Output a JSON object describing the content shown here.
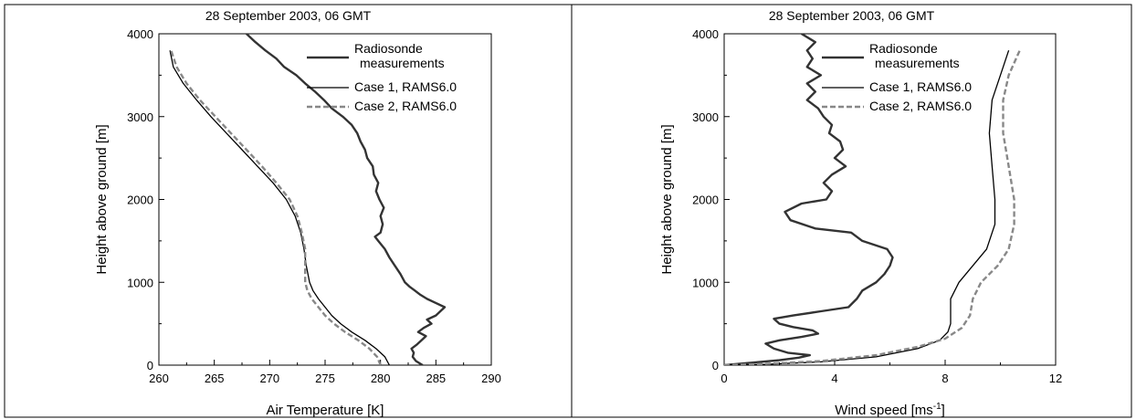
{
  "chart_data": [
    {
      "type": "line",
      "title": "28 September 2003, 06 GMT",
      "xlabel": "Air Temperature [K]",
      "ylabel": "Height above ground [m]",
      "xlim": [
        260,
        290
      ],
      "ylim": [
        0,
        4000
      ],
      "x_ticks": [
        "260",
        "265",
        "270",
        "275",
        "280",
        "285",
        "290"
      ],
      "y_ticks": [
        "0",
        "1000",
        "2000",
        "3000",
        "4000"
      ],
      "legend_position": "top-right",
      "grid": false,
      "series": [
        {
          "name": "Radiosonde measurements",
          "legend_lines": [
            "Radiosonde",
            "measurements"
          ],
          "color": "#333333",
          "style": "solid-thick",
          "points": [
            [
              283.8,
              0
            ],
            [
              283.2,
              50
            ],
            [
              282.9,
              100
            ],
            [
              283.0,
              150
            ],
            [
              282.8,
              200
            ],
            [
              283.3,
              250
            ],
            [
              283.7,
              300
            ],
            [
              284.1,
              350
            ],
            [
              283.4,
              400
            ],
            [
              283.9,
              450
            ],
            [
              284.6,
              500
            ],
            [
              284.2,
              550
            ],
            [
              285.0,
              600
            ],
            [
              285.4,
              650
            ],
            [
              285.8,
              700
            ],
            [
              285.0,
              750
            ],
            [
              284.2,
              800
            ],
            [
              283.6,
              850
            ],
            [
              283.1,
              900
            ],
            [
              282.6,
              950
            ],
            [
              282.2,
              1000
            ],
            [
              281.8,
              1100
            ],
            [
              281.3,
              1200
            ],
            [
              280.8,
              1300
            ],
            [
              280.4,
              1400
            ],
            [
              279.8,
              1500
            ],
            [
              279.5,
              1550
            ],
            [
              280.0,
              1600
            ],
            [
              280.2,
              1700
            ],
            [
              280.0,
              1800
            ],
            [
              280.3,
              1900
            ],
            [
              279.9,
              2000
            ],
            [
              279.6,
              2100
            ],
            [
              279.8,
              2200
            ],
            [
              279.4,
              2300
            ],
            [
              279.3,
              2400
            ],
            [
              278.8,
              2500
            ],
            [
              278.6,
              2600
            ],
            [
              278.2,
              2700
            ],
            [
              277.9,
              2800
            ],
            [
              277.4,
              2900
            ],
            [
              276.6,
              3000
            ],
            [
              275.6,
              3100
            ],
            [
              274.9,
              3200
            ],
            [
              274.1,
              3300
            ],
            [
              273.2,
              3400
            ],
            [
              272.4,
              3500
            ],
            [
              271.3,
              3600
            ],
            [
              270.6,
              3700
            ],
            [
              269.6,
              3800
            ],
            [
              268.7,
              3900
            ],
            [
              267.9,
              4000
            ]
          ]
        },
        {
          "name": "Case 1, RAMS6.0",
          "color": "#000000",
          "style": "solid-thin",
          "points": [
            [
              280.8,
              0
            ],
            [
              280.4,
              100
            ],
            [
              279.6,
              200
            ],
            [
              278.6,
              300
            ],
            [
              277.4,
              400
            ],
            [
              276.4,
              500
            ],
            [
              275.6,
              600
            ],
            [
              275.0,
              700
            ],
            [
              274.4,
              800
            ],
            [
              273.9,
              900
            ],
            [
              273.6,
              1000
            ],
            [
              273.3,
              1200
            ],
            [
              273.1,
              1400
            ],
            [
              272.8,
              1600
            ],
            [
              272.3,
              1800
            ],
            [
              271.5,
              2000
            ],
            [
              270.3,
              2200
            ],
            [
              268.9,
              2400
            ],
            [
              267.5,
              2600
            ],
            [
              266.1,
              2800
            ],
            [
              264.7,
              3000
            ],
            [
              263.4,
              3200
            ],
            [
              262.2,
              3400
            ],
            [
              261.3,
              3600
            ],
            [
              261.0,
              3800
            ]
          ]
        },
        {
          "name": "Case 2, RAMS6.0",
          "color": "#888888",
          "style": "dashed",
          "points": [
            [
              280.0,
              0
            ],
            [
              279.7,
              100
            ],
            [
              279.0,
              200
            ],
            [
              278.0,
              300
            ],
            [
              276.8,
              400
            ],
            [
              275.8,
              500
            ],
            [
              275.0,
              600
            ],
            [
              274.4,
              700
            ],
            [
              273.8,
              800
            ],
            [
              273.4,
              900
            ],
            [
              273.2,
              1000
            ],
            [
              273.2,
              1200
            ],
            [
              273.2,
              1400
            ],
            [
              272.9,
              1600
            ],
            [
              272.5,
              1800
            ],
            [
              271.8,
              2000
            ],
            [
              270.6,
              2200
            ],
            [
              269.3,
              2400
            ],
            [
              267.9,
              2600
            ],
            [
              266.5,
              2800
            ],
            [
              265.1,
              3000
            ],
            [
              263.7,
              3200
            ],
            [
              262.5,
              3400
            ],
            [
              261.6,
              3600
            ],
            [
              261.1,
              3800
            ]
          ]
        }
      ]
    },
    {
      "type": "line",
      "title": "28 September 2003, 06 GMT",
      "xlabel": "Wind speed [ms",
      "xlabel_sup": "-1",
      "xlabel_end": "]",
      "ylabel": "Height above ground [m]",
      "xlim": [
        0,
        12
      ],
      "ylim": [
        0,
        4000
      ],
      "x_ticks": [
        "0",
        "4",
        "8",
        "12"
      ],
      "y_ticks": [
        "0",
        "1000",
        "2000",
        "3000",
        "4000"
      ],
      "legend_position": "top-right",
      "grid": false,
      "series": [
        {
          "name": "Radiosonde measurements",
          "legend_lines": [
            "Radiosonde",
            "measurements"
          ],
          "color": "#333333",
          "style": "solid-thick",
          "points": [
            [
              0,
              0
            ],
            [
              1.0,
              30
            ],
            [
              2.0,
              60
            ],
            [
              2.7,
              90
            ],
            [
              3.1,
              120
            ],
            [
              2.3,
              150
            ],
            [
              1.8,
              200
            ],
            [
              1.5,
              260
            ],
            [
              2.0,
              300
            ],
            [
              2.8,
              340
            ],
            [
              3.4,
              380
            ],
            [
              3.2,
              420
            ],
            [
              2.5,
              460
            ],
            [
              2.0,
              500
            ],
            [
              1.8,
              560
            ],
            [
              2.5,
              600
            ],
            [
              3.5,
              650
            ],
            [
              4.5,
              700
            ],
            [
              4.8,
              800
            ],
            [
              5.0,
              900
            ],
            [
              5.5,
              1000
            ],
            [
              5.8,
              1100
            ],
            [
              6.0,
              1200
            ],
            [
              6.1,
              1300
            ],
            [
              5.9,
              1400
            ],
            [
              5.0,
              1500
            ],
            [
              4.6,
              1600
            ],
            [
              3.3,
              1650
            ],
            [
              2.4,
              1750
            ],
            [
              2.2,
              1850
            ],
            [
              2.8,
              1950
            ],
            [
              3.7,
              2000
            ],
            [
              3.9,
              2100
            ],
            [
              3.6,
              2200
            ],
            [
              3.9,
              2300
            ],
            [
              4.4,
              2400
            ],
            [
              4.0,
              2500
            ],
            [
              4.3,
              2600
            ],
            [
              4.2,
              2700
            ],
            [
              3.8,
              2800
            ],
            [
              3.9,
              2900
            ],
            [
              3.6,
              3000
            ],
            [
              3.4,
              3100
            ],
            [
              3.0,
              3200
            ],
            [
              3.3,
              3300
            ],
            [
              3.0,
              3400
            ],
            [
              3.5,
              3500
            ],
            [
              3.0,
              3600
            ],
            [
              3.2,
              3700
            ],
            [
              3.0,
              3800
            ],
            [
              3.3,
              3900
            ],
            [
              2.8,
              4000
            ]
          ]
        },
        {
          "name": "Case 1, RAMS6.0",
          "color": "#000000",
          "style": "solid-thin",
          "points": [
            [
              0,
              0
            ],
            [
              1.5,
              10
            ],
            [
              3.5,
              40
            ],
            [
              5.5,
              100
            ],
            [
              7.0,
              200
            ],
            [
              7.8,
              300
            ],
            [
              8.1,
              400
            ],
            [
              8.2,
              500
            ],
            [
              8.2,
              700
            ],
            [
              8.2,
              800
            ],
            [
              8.5,
              1000
            ],
            [
              9.0,
              1200
            ],
            [
              9.5,
              1400
            ],
            [
              9.8,
              1700
            ],
            [
              9.8,
              2000
            ],
            [
              9.7,
              2400
            ],
            [
              9.6,
              2800
            ],
            [
              9.7,
              3200
            ],
            [
              10.0,
              3500
            ],
            [
              10.3,
              3800
            ]
          ]
        },
        {
          "name": "Case 2, RAMS6.0",
          "color": "#888888",
          "style": "dashed",
          "points": [
            [
              0,
              0
            ],
            [
              1.5,
              15
            ],
            [
              3.5,
              50
            ],
            [
              5.5,
              120
            ],
            [
              7.0,
              220
            ],
            [
              8.0,
              320
            ],
            [
              8.6,
              450
            ],
            [
              8.9,
              600
            ],
            [
              9.0,
              800
            ],
            [
              9.3,
              1000
            ],
            [
              9.9,
              1200
            ],
            [
              10.3,
              1400
            ],
            [
              10.5,
              1700
            ],
            [
              10.5,
              2000
            ],
            [
              10.3,
              2400
            ],
            [
              10.1,
              2800
            ],
            [
              10.1,
              3200
            ],
            [
              10.3,
              3500
            ],
            [
              10.7,
              3800
            ]
          ]
        }
      ]
    }
  ]
}
